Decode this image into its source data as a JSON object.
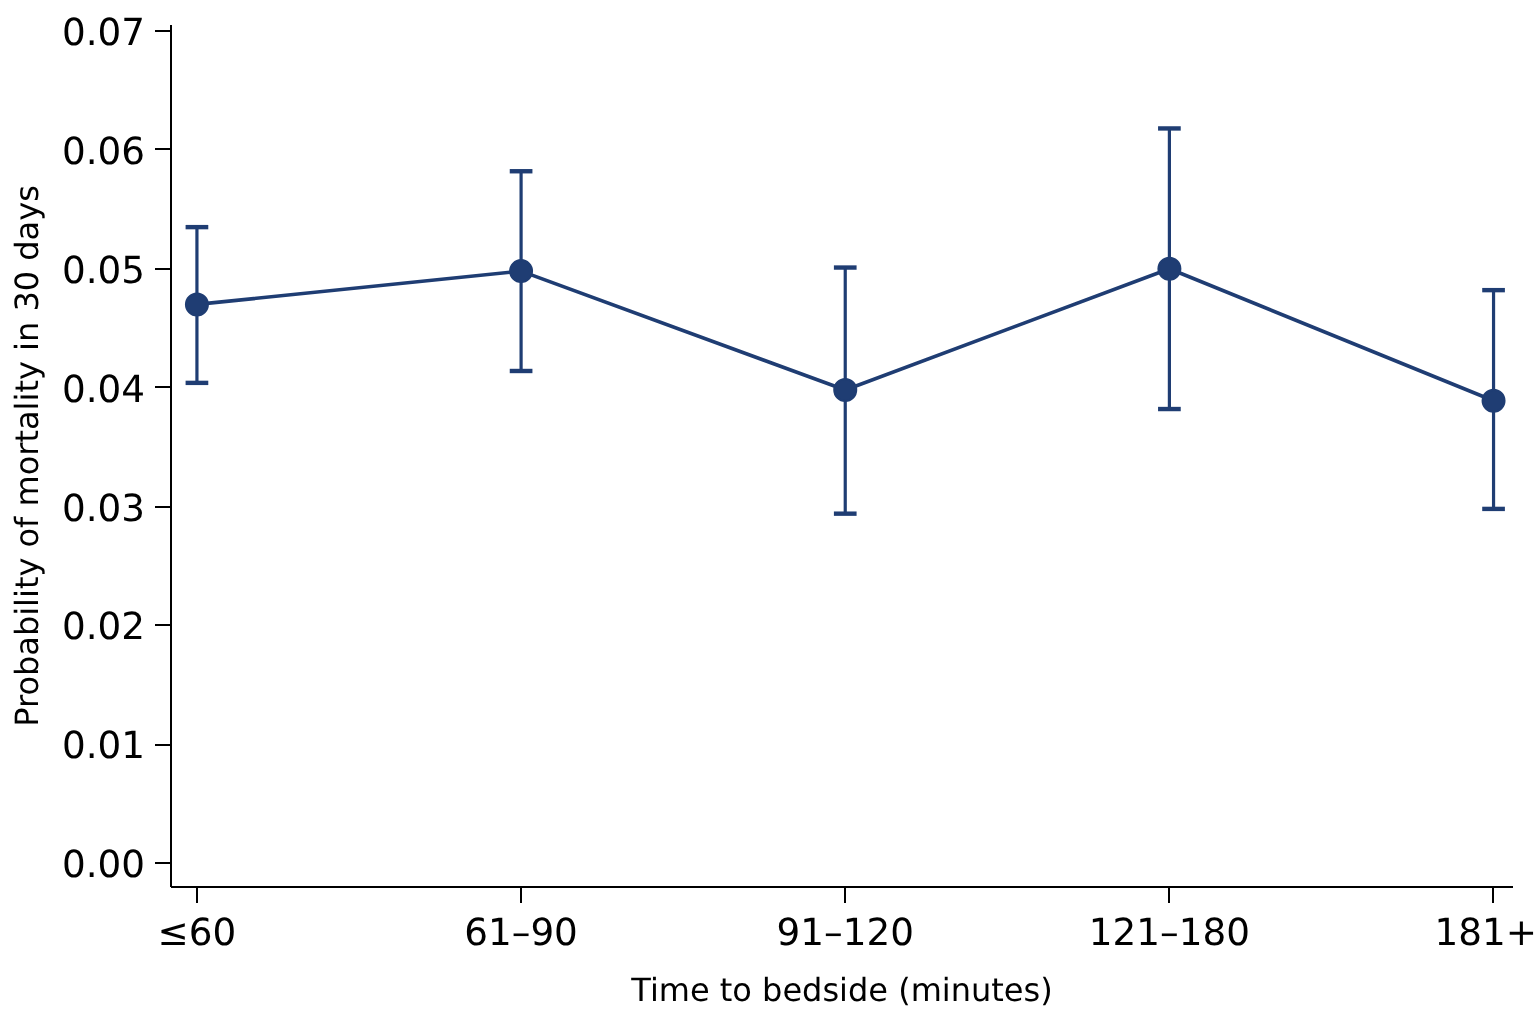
{
  "chart_data": {
    "type": "line",
    "xlabel": "Time to bedside (minutes)",
    "ylabel": "Probability of mortality in 30 days",
    "categories": [
      "≤60",
      "61–90",
      "91–120",
      "121–180",
      "181+"
    ],
    "series": [
      {
        "color": "#1f3d73",
        "values": [
          0.047,
          0.0498,
          0.0398,
          0.05,
          0.0389
        ],
        "errors": [
          [
            0.0404,
            0.0535
          ],
          [
            0.0414,
            0.0582
          ],
          [
            0.0294,
            0.0501
          ],
          [
            0.0382,
            0.0618
          ],
          [
            0.0298,
            0.0482
          ]
        ]
      }
    ],
    "ylim": [
      -0.002,
      0.0705
    ],
    "yticks": [
      {
        "value": 0,
        "label": "0.00"
      },
      0.01,
      0.02,
      0.03,
      0.04,
      0.05,
      0.06,
      0.07
    ],
    "grid": false,
    "marker": "circle",
    "line_style": "solid"
  }
}
